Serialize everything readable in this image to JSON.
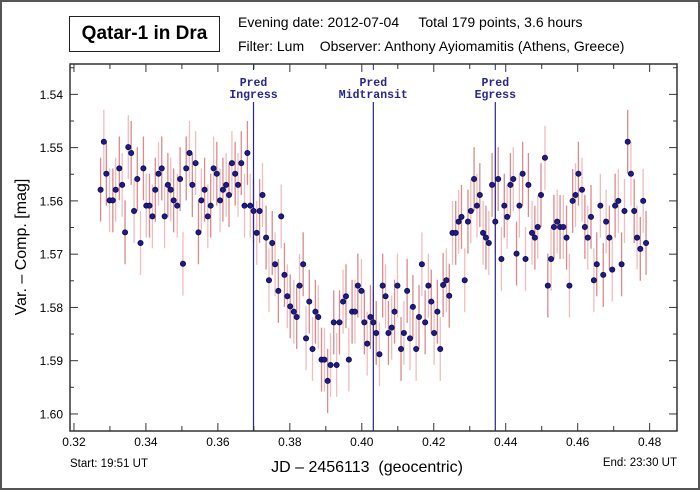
{
  "header": {
    "title": "Qatar-1 in Dra",
    "evening_date": "Evening date: 2012-07-04",
    "total": "Total 179 points, 3.6 hours",
    "filter": "Filter: Lum",
    "observer": "Observer: Anthony Ayiomamitis (Athens, Greece)"
  },
  "footer": {
    "start": "Start: 19:51 UT",
    "end": "End: 23:30 UT"
  },
  "colors": {
    "marker_fill": "#1c1c8a",
    "marker_stroke": "#0a0a50",
    "errorbar_dark": "#d98a8a",
    "errorbar_light": "#f2bcbc",
    "transit_line": "#26268c",
    "axis": "#333333"
  },
  "chart_data": {
    "type": "scatter",
    "title": "Qatar-1 in Dra",
    "xlabel": "JD – 2456113  (geocentric)",
    "ylabel": "Var. – Comp. [mag]",
    "xlim": [
      0.3189,
      0.4876
    ],
    "ylim": [
      1.5343,
      1.6032
    ],
    "y_inverted": true,
    "grid": false,
    "x_ticks": [
      "0.32",
      "0.34",
      "0.36",
      "0.38",
      "0.40",
      "0.42",
      "0.44",
      "0.46",
      "0.48"
    ],
    "y_ticks": [
      "1.54",
      "1.55",
      "1.56",
      "1.57",
      "1.58",
      "1.59",
      "1.60"
    ],
    "error": 0.006,
    "annotations": [
      {
        "name": "ingress",
        "x": 0.3699,
        "label": [
          "Pred",
          "Ingress"
        ]
      },
      {
        "name": "midtransit",
        "x": 0.4032,
        "label": [
          "Pred",
          "Midtransit"
        ]
      },
      {
        "name": "egress",
        "x": 0.4371,
        "label": [
          "Pred",
          "Egress"
        ]
      }
    ],
    "x": [
      0.3274,
      0.3283,
      0.329,
      0.3299,
      0.3308,
      0.3316,
      0.3326,
      0.3334,
      0.3342,
      0.3351,
      0.3359,
      0.3367,
      0.3376,
      0.3385,
      0.3393,
      0.3401,
      0.341,
      0.3418,
      0.3426,
      0.3435,
      0.3444,
      0.3452,
      0.3461,
      0.3469,
      0.3477,
      0.3487,
      0.3495,
      0.3503,
      0.3512,
      0.3521,
      0.3529,
      0.3538,
      0.3546,
      0.3554,
      0.3563,
      0.3572,
      0.358,
      0.3588,
      0.3597,
      0.3606,
      0.3614,
      0.3623,
      0.3631,
      0.3639,
      0.3648,
      0.3656,
      0.3665,
      0.3674,
      0.3682,
      0.369,
      0.3699,
      0.3708,
      0.3716,
      0.3724,
      0.3734,
      0.3742,
      0.3751,
      0.3759,
      0.3768,
      0.3776,
      0.3785,
      0.3793,
      0.3801,
      0.3811,
      0.3819,
      0.3827,
      0.3837,
      0.3845,
      0.3854,
      0.3863,
      0.3871,
      0.3879,
      0.3888,
      0.3896,
      0.3905,
      0.3913,
      0.3922,
      0.393,
      0.3938,
      0.3948,
      0.3956,
      0.3964,
      0.3973,
      0.3981,
      0.3989,
      0.3999,
      0.4007,
      0.4015,
      0.4024,
      0.4032,
      0.404,
      0.4049,
      0.4058,
      0.4066,
      0.4074,
      0.4083,
      0.4091,
      0.4099,
      0.4109,
      0.4117,
      0.4126,
      0.4134,
      0.4142,
      0.4151,
      0.4159,
      0.4167,
      0.4176,
      0.4185,
      0.4193,
      0.4201,
      0.421,
      0.4218,
      0.4226,
      0.4235,
      0.4243,
      0.4252,
      0.4261,
      0.4269,
      0.4277,
      0.4286,
      0.4295,
      0.4303,
      0.4312,
      0.432,
      0.4328,
      0.4337,
      0.4345,
      0.4353,
      0.4362,
      0.4371,
      0.4379,
      0.4388,
      0.4396,
      0.4404,
      0.4413,
      0.4421,
      0.443,
      0.4438,
      0.4447,
      0.4455,
      0.4463,
      0.4473,
      0.4481,
      0.4489,
      0.4498,
      0.4509,
      0.4517,
      0.4526,
      0.4534,
      0.4543,
      0.4551,
      0.456,
      0.4569,
      0.4577,
      0.4586,
      0.4594,
      0.4602,
      0.4612,
      0.462,
      0.4628,
      0.4637,
      0.4645,
      0.4653,
      0.4663,
      0.4671,
      0.4679,
      0.4688,
      0.4696,
      0.4704,
      0.4713,
      0.4722,
      0.473,
      0.4739,
      0.4748,
      0.4757,
      0.4765,
      0.4774,
      0.4782,
      0.479
    ],
    "y": [
      1.5579,
      1.5489,
      1.5549,
      1.5599,
      1.5599,
      1.5579,
      1.5539,
      1.557,
      1.5659,
      1.5499,
      1.551,
      1.5619,
      1.5559,
      1.5679,
      1.5539,
      1.5609,
      1.5609,
      1.5629,
      1.5579,
      1.5549,
      1.5539,
      1.5629,
      1.557,
      1.5579,
      1.5599,
      1.5609,
      1.5559,
      1.5718,
      1.5539,
      1.551,
      1.557,
      1.5529,
      1.5659,
      1.5599,
      1.5579,
      1.5629,
      1.5609,
      1.5539,
      1.5549,
      1.5599,
      1.5579,
      1.557,
      1.5589,
      1.5529,
      1.5549,
      1.557,
      1.5529,
      1.5609,
      1.551,
      1.5609,
      1.5619,
      1.566,
      1.5619,
      1.5589,
      1.5669,
      1.5749,
      1.5679,
      1.5719,
      1.5769,
      1.5629,
      1.5739,
      1.5779,
      1.5798,
      1.5808,
      1.5818,
      1.5759,
      1.5719,
      1.5858,
      1.5789,
      1.5878,
      1.5808,
      1.5818,
      1.5898,
      1.5898,
      1.5938,
      1.5908,
      1.5828,
      1.5908,
      1.5828,
      1.5789,
      1.5779,
      1.5898,
      1.5808,
      1.5808,
      1.5759,
      1.5769,
      1.5828,
      1.5868,
      1.5818,
      1.5828,
      1.5848,
      1.5888,
      1.5759,
      1.5779,
      1.5848,
      1.5838,
      1.5808,
      1.5759,
      1.5878,
      1.5848,
      1.5769,
      1.5858,
      1.5799,
      1.5878,
      1.5818,
      1.5719,
      1.5828,
      1.5759,
      1.5789,
      1.5848,
      1.5808,
      1.5878,
      1.5758,
      1.5749,
      1.5778,
      1.566,
      1.566,
      1.5639,
      1.563,
      1.5749,
      1.5639,
      1.5619,
      1.5559,
      1.5609,
      1.5589,
      1.566,
      1.5669,
      1.5679,
      1.557,
      1.5639,
      1.5559,
      1.5709,
      1.5609,
      1.563,
      1.557,
      1.5559,
      1.5699,
      1.5609,
      1.5549,
      1.5709,
      1.557,
      1.566,
      1.5669,
      1.5649,
      1.5589,
      1.5519,
      1.5759,
      1.5709,
      1.5649,
      1.5639,
      1.5649,
      1.5649,
      1.5669,
      1.5759,
      1.56,
      1.5589,
      1.5549,
      1.5579,
      1.5649,
      1.5669,
      1.563,
      1.5749,
      1.5719,
      1.5609,
      1.5739,
      1.5639,
      1.5669,
      1.5729,
      1.5609,
      1.56,
      1.5719,
      1.5619,
      1.5489,
      1.5549,
      1.5619,
      1.5669,
      1.569,
      1.56,
      1.5679
    ]
  }
}
